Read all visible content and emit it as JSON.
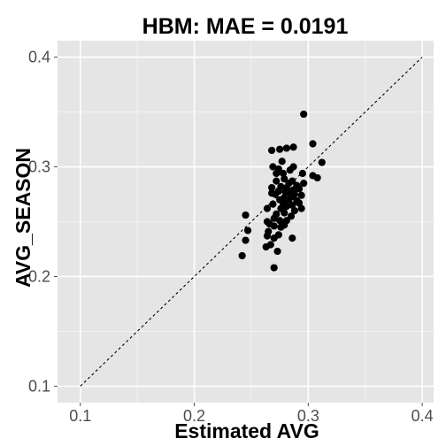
{
  "chart_data": {
    "type": "scatter",
    "title": "HBM: MAE =  0.0191",
    "xlabel": "Estimated AVG",
    "ylabel": "AVG_SEASON",
    "xlim": [
      0.08,
      0.41
    ],
    "ylim": [
      0.085,
      0.415
    ],
    "xticks": [
      0.1,
      0.2,
      0.3,
      0.4
    ],
    "yticks": [
      0.1,
      0.2,
      0.3,
      0.4
    ],
    "xtick_labels": [
      "0.1",
      "0.2",
      "0.3",
      "0.4"
    ],
    "ytick_labels": [
      "0.1",
      "0.2",
      "0.3",
      "0.4"
    ],
    "grid": true,
    "panel_color": "#e5e5e5",
    "grid_color": "#ffffff",
    "point_color": "#000000",
    "reference_line": {
      "from": [
        0.1,
        0.1
      ],
      "to": [
        0.4,
        0.4
      ],
      "style": "dashed"
    },
    "points": [
      [
        0.296,
        0.348
      ],
      [
        0.304,
        0.321
      ],
      [
        0.287,
        0.318
      ],
      [
        0.281,
        0.317
      ],
      [
        0.275,
        0.316
      ],
      [
        0.268,
        0.315
      ],
      [
        0.312,
        0.304
      ],
      [
        0.277,
        0.305
      ],
      [
        0.269,
        0.3
      ],
      [
        0.287,
        0.3
      ],
      [
        0.274,
        0.298
      ],
      [
        0.278,
        0.294
      ],
      [
        0.284,
        0.297
      ],
      [
        0.272,
        0.294
      ],
      [
        0.295,
        0.294
      ],
      [
        0.304,
        0.292
      ],
      [
        0.308,
        0.29
      ],
      [
        0.279,
        0.289
      ],
      [
        0.272,
        0.287
      ],
      [
        0.286,
        0.287
      ],
      [
        0.296,
        0.285
      ],
      [
        0.283,
        0.285
      ],
      [
        0.29,
        0.283
      ],
      [
        0.276,
        0.282
      ],
      [
        0.281,
        0.281
      ],
      [
        0.268,
        0.281
      ],
      [
        0.292,
        0.28
      ],
      [
        0.287,
        0.279
      ],
      [
        0.274,
        0.278
      ],
      [
        0.28,
        0.277
      ],
      [
        0.268,
        0.276
      ],
      [
        0.284,
        0.276
      ],
      [
        0.288,
        0.275
      ],
      [
        0.271,
        0.275
      ],
      [
        0.294,
        0.274
      ],
      [
        0.286,
        0.273
      ],
      [
        0.279,
        0.272
      ],
      [
        0.275,
        0.27
      ],
      [
        0.283,
        0.27
      ],
      [
        0.29,
        0.269
      ],
      [
        0.278,
        0.267
      ],
      [
        0.292,
        0.267
      ],
      [
        0.269,
        0.266
      ],
      [
        0.286,
        0.265
      ],
      [
        0.281,
        0.264
      ],
      [
        0.276,
        0.262
      ],
      [
        0.294,
        0.262
      ],
      [
        0.264,
        0.262
      ],
      [
        0.288,
        0.26
      ],
      [
        0.279,
        0.258
      ],
      [
        0.272,
        0.257
      ],
      [
        0.285,
        0.255
      ],
      [
        0.27,
        0.253
      ],
      [
        0.275,
        0.251
      ],
      [
        0.281,
        0.251
      ],
      [
        0.264,
        0.25
      ],
      [
        0.245,
        0.256
      ],
      [
        0.266,
        0.248
      ],
      [
        0.279,
        0.247
      ],
      [
        0.27,
        0.246
      ],
      [
        0.276,
        0.245
      ],
      [
        0.265,
        0.241
      ],
      [
        0.247,
        0.242
      ],
      [
        0.274,
        0.238
      ],
      [
        0.264,
        0.237
      ],
      [
        0.27,
        0.235
      ],
      [
        0.286,
        0.235
      ],
      [
        0.245,
        0.233
      ],
      [
        0.267,
        0.229
      ],
      [
        0.263,
        0.227
      ],
      [
        0.273,
        0.223
      ],
      [
        0.242,
        0.219
      ],
      [
        0.27,
        0.208
      ]
    ]
  }
}
